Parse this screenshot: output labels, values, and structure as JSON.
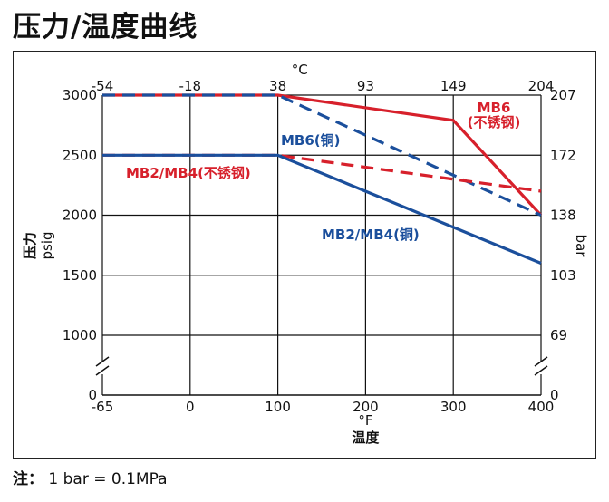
{
  "title": "压力/温度曲线",
  "note": {
    "label": "注",
    "sep": "：",
    "text": "1 bar = 0.1MPa"
  },
  "colors": {
    "red": "#d7202b",
    "blue": "#1b4f9c",
    "grid": "#111111"
  },
  "chart_data": {
    "type": "line",
    "x_bottom": {
      "unit": "°F",
      "label": "温度",
      "ticks": [
        -65,
        0,
        100,
        200,
        300,
        400
      ],
      "range": [
        -65,
        400
      ]
    },
    "x_top": {
      "unit": "°C",
      "ticks": [
        {
          "label": "-54",
          "at_f": -65
        },
        {
          "label": "-18",
          "at_f": 0
        },
        {
          "label": "38",
          "at_f": 100
        },
        {
          "label": "93",
          "at_f": 200
        },
        {
          "label": "149",
          "at_f": 300
        },
        {
          "label": "204",
          "at_f": 400
        }
      ]
    },
    "y_left": {
      "label": "压力",
      "unit": "psig",
      "ticks": [
        0,
        1000,
        1500,
        2000,
        2500,
        3000
      ],
      "range": [
        1000,
        3000
      ],
      "break": true
    },
    "y_right": {
      "unit": "bar",
      "ticks": [
        {
          "label": "0",
          "at_psi": 0
        },
        {
          "label": "69",
          "at_psi": 1000
        },
        {
          "label": "103",
          "at_psi": 1500
        },
        {
          "label": "138",
          "at_psi": 2000
        },
        {
          "label": "172",
          "at_psi": 2500
        },
        {
          "label": "207",
          "at_psi": 3000
        }
      ]
    },
    "series": [
      {
        "name": "MB6 (不锈钢)",
        "label_lines": [
          "MB6",
          "(不锈钢)"
        ],
        "color": "red",
        "dash": false,
        "points": [
          [
            -65,
            3000
          ],
          [
            100,
            3000
          ],
          [
            300,
            2790
          ],
          [
            400,
            2000
          ]
        ]
      },
      {
        "name": "MB6(铜)",
        "label_lines": [
          "MB6(铜)"
        ],
        "color": "blue",
        "dash": true,
        "points": [
          [
            -65,
            3000
          ],
          [
            100,
            3000
          ],
          [
            400,
            2000
          ]
        ]
      },
      {
        "name": "MB2/MB4(不锈钢)",
        "label_lines": [
          "MB2/MB4(不锈钢)"
        ],
        "color": "red",
        "dash": true,
        "points": [
          [
            -65,
            2500
          ],
          [
            100,
            2500
          ],
          [
            400,
            2200
          ]
        ]
      },
      {
        "name": "MB2/MB4(铜)",
        "label_lines": [
          "MB2/MB4(铜)"
        ],
        "color": "blue",
        "dash": false,
        "points": [
          [
            -65,
            2500
          ],
          [
            100,
            2500
          ],
          [
            400,
            1600
          ]
        ]
      }
    ]
  }
}
